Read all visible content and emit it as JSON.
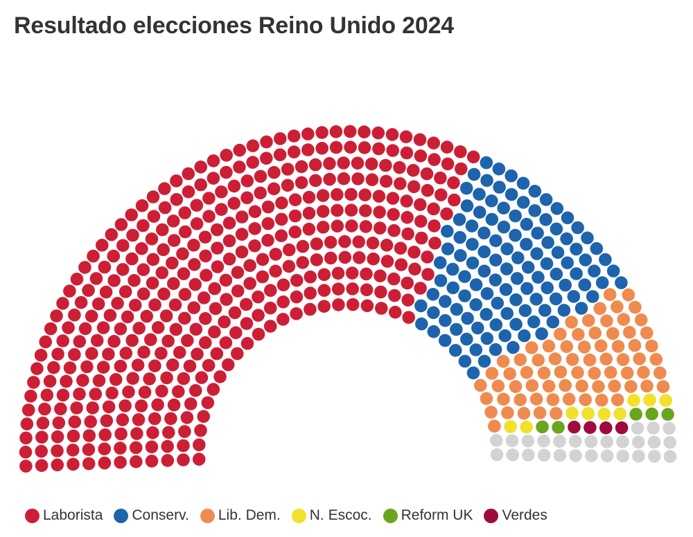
{
  "title": "Resultado elecciones Reino Unido 2024",
  "chart_data": {
    "type": "parliament",
    "title": "Resultado elecciones Reino Unido 2024",
    "total_seats": 650,
    "series": [
      {
        "name": "Laborista",
        "seats": 412,
        "color": "#cc1f36"
      },
      {
        "name": "Conserv.",
        "seats": 121,
        "color": "#1e64ad"
      },
      {
        "name": "Lib. Dem.",
        "seats": 72,
        "color": "#ef8b4f"
      },
      {
        "name": "N. Escoc.",
        "seats": 9,
        "color": "#f0e12b"
      },
      {
        "name": "Reform UK",
        "seats": 5,
        "color": "#6aa51e"
      },
      {
        "name": "Verdes",
        "seats": 4,
        "color": "#9e0b3f"
      }
    ],
    "other": {
      "seats": 27,
      "color": "#d3d3d3"
    },
    "legend_position": "bottom-left"
  }
}
